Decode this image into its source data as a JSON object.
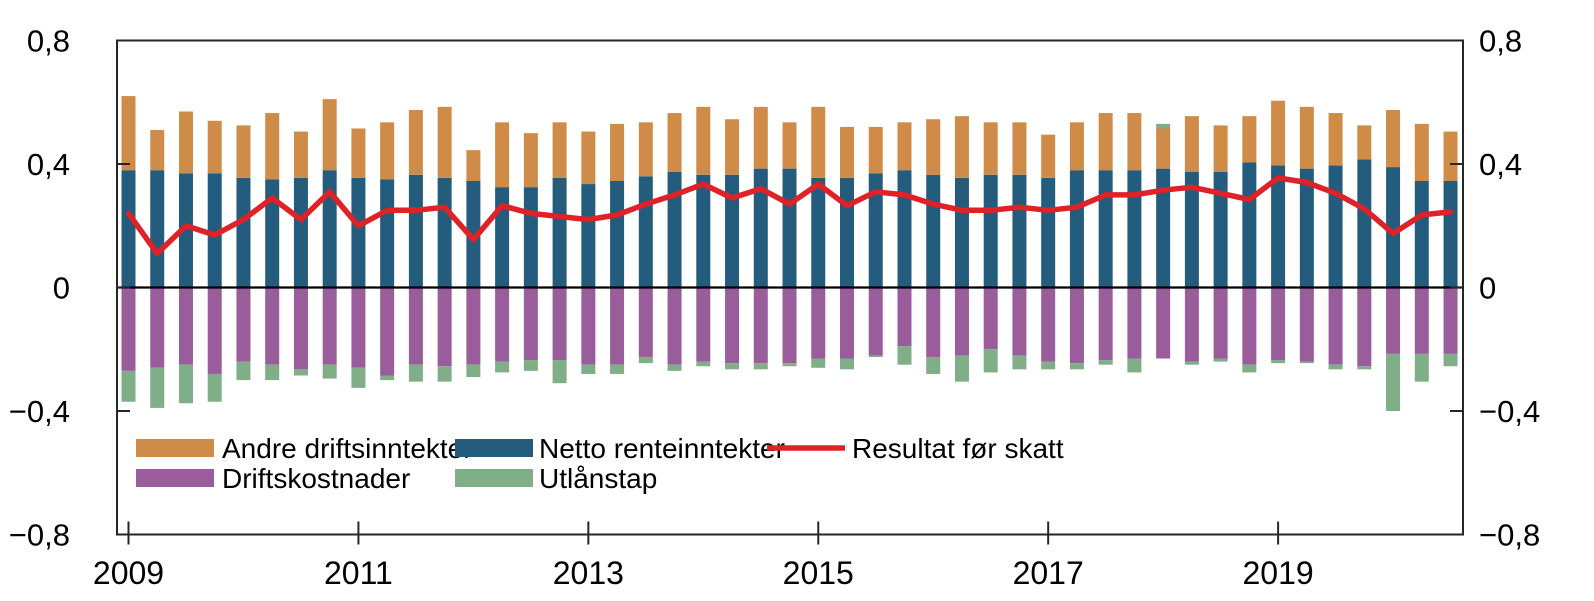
{
  "colors": {
    "background": "#ffffff",
    "frame": "#262626",
    "zero_line": "#000000",
    "text": "#000000"
  },
  "chart_data": {
    "type": "bar",
    "subtype": "stacked-bar-with-line-overlay",
    "title": "",
    "grid": false,
    "ylim": [
      -0.8,
      0.8
    ],
    "y_ticks": [
      0.8,
      0.4,
      0,
      -0.4,
      -0.8
    ],
    "y_tick_labels": [
      "0,8",
      "0,4",
      "0",
      "−0,4",
      "−0,8"
    ],
    "y_axis_both_sides": true,
    "inner_y_tick_values": [
      0.4,
      0,
      -0.4
    ],
    "x_tick_labels": [
      "2009",
      "2011",
      "2013",
      "2015",
      "2017",
      "2019"
    ],
    "x_tick_quarter_indices": [
      0,
      8,
      16,
      24,
      32,
      40
    ],
    "x_quarters": [
      "2009K1",
      "2009K2",
      "2009K3",
      "2009K4",
      "2010K1",
      "2010K2",
      "2010K3",
      "2010K4",
      "2011K1",
      "2011K2",
      "2011K3",
      "2011K4",
      "2012K1",
      "2012K2",
      "2012K3",
      "2012K4",
      "2013K1",
      "2013K2",
      "2013K3",
      "2013K4",
      "2014K1",
      "2014K2",
      "2014K3",
      "2014K4",
      "2015K1",
      "2015K2",
      "2015K3",
      "2015K4",
      "2016K1",
      "2016K2",
      "2016K3",
      "2016K4",
      "2017K1",
      "2017K2",
      "2017K3",
      "2017K4",
      "2018K1",
      "2018K2",
      "2018K3",
      "2018K4",
      "2019K1",
      "2019K2",
      "2019K3",
      "2019K4",
      "2020K1",
      "2020K2",
      "2020K3"
    ],
    "series": [
      {
        "name": "Netto renteinntekter",
        "type": "bar",
        "color": "#235C7C",
        "values": [
          0.38,
          0.38,
          0.37,
          0.37,
          0.355,
          0.35,
          0.355,
          0.38,
          0.355,
          0.35,
          0.365,
          0.355,
          0.345,
          0.325,
          0.325,
          0.355,
          0.335,
          0.345,
          0.36,
          0.375,
          0.365,
          0.365,
          0.385,
          0.385,
          0.355,
          0.355,
          0.37,
          0.38,
          0.365,
          0.355,
          0.365,
          0.365,
          0.355,
          0.38,
          0.38,
          0.38,
          0.385,
          0.375,
          0.375,
          0.405,
          0.395,
          0.385,
          0.395,
          0.415,
          0.39,
          0.345,
          0.345
        ]
      },
      {
        "name": "Andre driftsinntekter",
        "type": "bar",
        "color": "#CE8C48",
        "values": [
          0.24,
          0.13,
          0.2,
          0.17,
          0.17,
          0.215,
          0.15,
          0.23,
          0.16,
          0.185,
          0.21,
          0.23,
          0.1,
          0.21,
          0.175,
          0.18,
          0.17,
          0.185,
          0.175,
          0.19,
          0.22,
          0.18,
          0.2,
          0.15,
          0.23,
          0.165,
          0.15,
          0.155,
          0.18,
          0.2,
          0.17,
          0.17,
          0.14,
          0.155,
          0.185,
          0.185,
          0.13,
          0.18,
          0.15,
          0.15,
          0.21,
          0.2,
          0.17,
          0.11,
          0.185,
          0.185,
          0.16
        ]
      },
      {
        "name": "Driftskostnader",
        "type": "bar",
        "color": "#9A5D9B",
        "values": [
          -0.27,
          -0.26,
          -0.25,
          -0.28,
          -0.24,
          -0.25,
          -0.265,
          -0.25,
          -0.26,
          -0.285,
          -0.25,
          -0.255,
          -0.25,
          -0.24,
          -0.235,
          -0.235,
          -0.25,
          -0.25,
          -0.225,
          -0.25,
          -0.24,
          -0.245,
          -0.245,
          -0.245,
          -0.23,
          -0.23,
          -0.22,
          -0.19,
          -0.225,
          -0.22,
          -0.2,
          -0.22,
          -0.24,
          -0.245,
          -0.235,
          -0.23,
          -0.23,
          -0.24,
          -0.23,
          -0.25,
          -0.235,
          -0.24,
          -0.25,
          -0.255,
          -0.215,
          -0.215,
          -0.215
        ]
      },
      {
        "name": "Utlånstap",
        "type": "bar",
        "color": "#7FAE87",
        "values": [
          -0.1,
          -0.13,
          -0.125,
          -0.09,
          -0.06,
          -0.05,
          -0.02,
          -0.045,
          -0.065,
          -0.015,
          -0.055,
          -0.05,
          -0.04,
          -0.035,
          -0.035,
          -0.075,
          -0.03,
          -0.03,
          -0.02,
          -0.02,
          -0.015,
          -0.02,
          -0.02,
          -0.01,
          -0.03,
          -0.035,
          -0.005,
          -0.06,
          -0.055,
          -0.085,
          -0.075,
          -0.045,
          -0.025,
          -0.02,
          -0.015,
          -0.045,
          0.015,
          -0.01,
          -0.01,
          -0.025,
          -0.01,
          -0.005,
          -0.015,
          -0.01,
          -0.185,
          -0.09,
          -0.04
        ]
      },
      {
        "name": "Resultat før skatt",
        "type": "line",
        "color": "#DF2128",
        "values": [
          0.24,
          0.11,
          0.2,
          0.17,
          0.22,
          0.29,
          0.22,
          0.31,
          0.2,
          0.25,
          0.25,
          0.26,
          0.155,
          0.265,
          0.24,
          0.23,
          0.22,
          0.235,
          0.27,
          0.3,
          0.335,
          0.29,
          0.32,
          0.27,
          0.335,
          0.265,
          0.31,
          0.3,
          0.27,
          0.25,
          0.25,
          0.26,
          0.25,
          0.26,
          0.3,
          0.3,
          0.315,
          0.325,
          0.305,
          0.285,
          0.355,
          0.34,
          0.305,
          0.255,
          0.175,
          0.235,
          0.245
        ]
      }
    ],
    "legend_position": "inside-bottom-left",
    "legend": [
      {
        "label": "Andre driftsinntekter",
        "color": "#CE8C48",
        "marker": "swatch",
        "row": 0,
        "col": 0
      },
      {
        "label": "Netto renteinntekter",
        "color": "#235C7C",
        "marker": "swatch",
        "row": 0,
        "col": 1
      },
      {
        "label": "Resultat før skatt",
        "color": "#DF2128",
        "marker": "line",
        "row": 0,
        "col": 2
      },
      {
        "label": "Driftskostnader",
        "color": "#9A5D9B",
        "marker": "swatch",
        "row": 1,
        "col": 0
      },
      {
        "label": "Utlånstap",
        "color": "#7FAE87",
        "marker": "swatch",
        "row": 1,
        "col": 1
      }
    ]
  }
}
